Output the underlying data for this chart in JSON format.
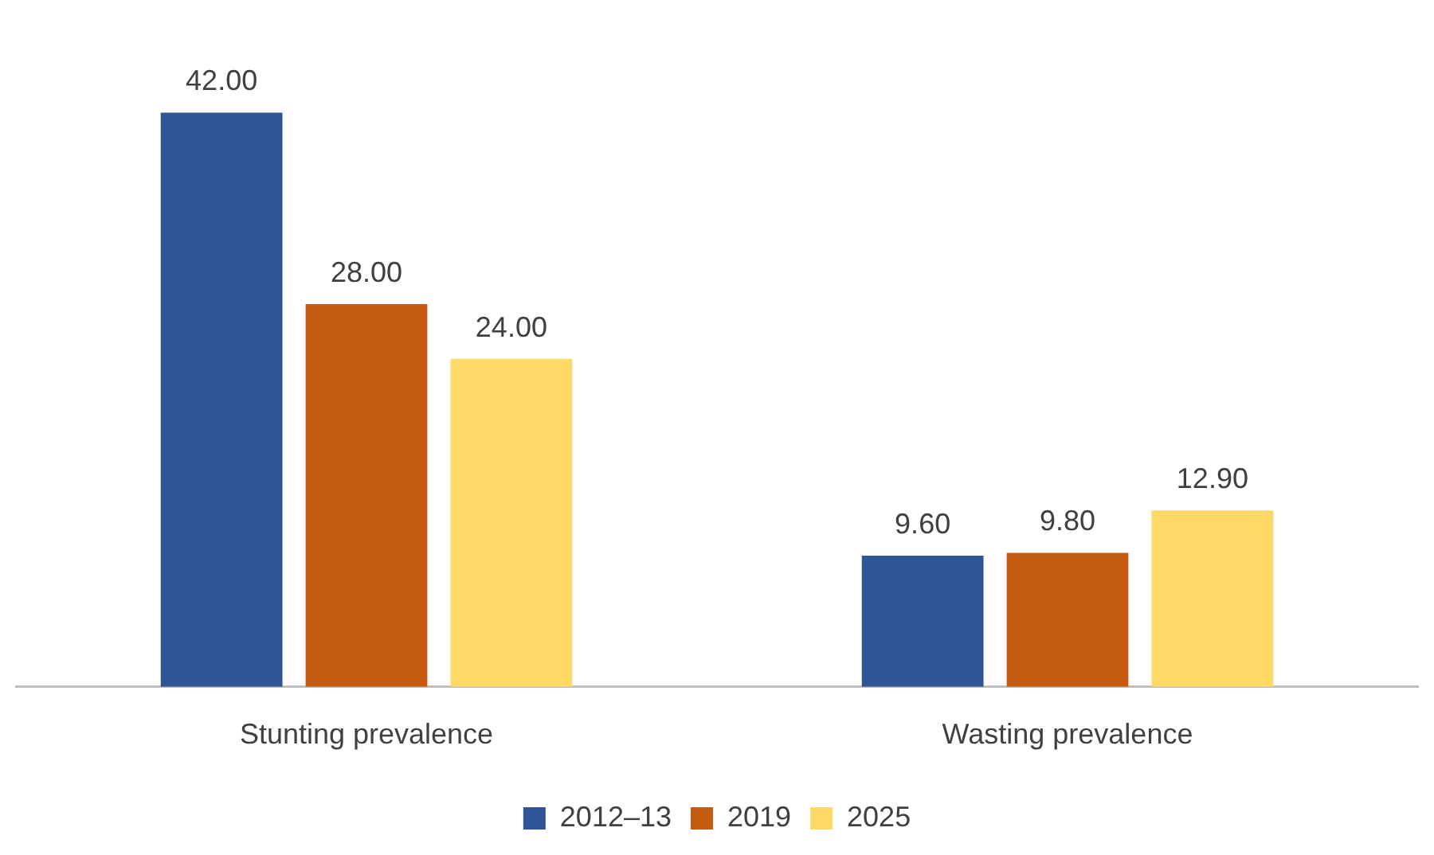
{
  "chart_data": {
    "type": "bar",
    "categories": [
      "Stunting prevalence",
      "Wasting prevalence"
    ],
    "series": [
      {
        "name": "2012–13",
        "color": "#2f5597",
        "values": [
          42.0,
          9.6
        ],
        "value_labels": [
          "42.00",
          "9.60"
        ]
      },
      {
        "name": "2019",
        "color": "#c55a11",
        "values": [
          28.0,
          9.8
        ],
        "value_labels": [
          "28.00",
          "9.80"
        ]
      },
      {
        "name": "2025",
        "color": "#ffd966",
        "values": [
          24.0,
          12.9
        ],
        "value_labels": [
          "24.00",
          "12.90"
        ]
      }
    ],
    "grid": false,
    "legend": "bottom",
    "tick_labels": "x"
  }
}
